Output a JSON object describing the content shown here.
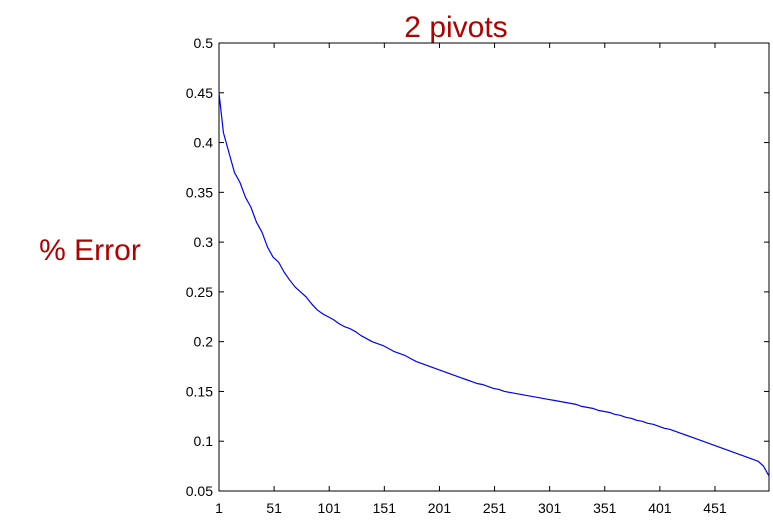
{
  "chart_data": {
    "type": "line",
    "title": "2 pivots",
    "xlabel": "",
    "ylabel": "% Error",
    "xlim": [
      1,
      500
    ],
    "ylim": [
      0.05,
      0.5
    ],
    "x_ticks": [
      1,
      51,
      101,
      151,
      201,
      251,
      301,
      351,
      401,
      451
    ],
    "x_tick_labels": [
      "1",
      "51",
      "101",
      "151",
      "201",
      "251",
      "301",
      "351",
      "401",
      "451"
    ],
    "y_ticks": [
      0.05,
      0.1,
      0.15,
      0.2,
      0.25,
      0.3,
      0.35,
      0.4,
      0.45,
      0.5
    ],
    "y_tick_labels": [
      "0.05",
      "0.1",
      "0.15",
      "0.2",
      "0.25",
      "0.3",
      "0.35",
      "0.4",
      "0.45",
      "0.5"
    ],
    "grid": false,
    "legend": "none",
    "series": [
      {
        "color": "#0000ff",
        "x": [
          1,
          3,
          5,
          10,
          15,
          20,
          25,
          30,
          35,
          40,
          45,
          50,
          55,
          60,
          65,
          70,
          75,
          80,
          85,
          90,
          95,
          100,
          105,
          110,
          115,
          120,
          125,
          130,
          135,
          140,
          145,
          150,
          155,
          160,
          165,
          170,
          175,
          180,
          185,
          190,
          195,
          200,
          205,
          210,
          215,
          220,
          225,
          230,
          235,
          240,
          245,
          250,
          255,
          260,
          265,
          270,
          275,
          280,
          285,
          290,
          295,
          300,
          305,
          310,
          315,
          320,
          325,
          330,
          335,
          340,
          345,
          350,
          355,
          360,
          365,
          370,
          375,
          380,
          385,
          390,
          395,
          400,
          405,
          410,
          415,
          420,
          425,
          430,
          435,
          440,
          445,
          450,
          455,
          460,
          465,
          470,
          475,
          480,
          485,
          490,
          495,
          500
        ],
        "y": [
          0.45,
          0.43,
          0.41,
          0.39,
          0.37,
          0.36,
          0.345,
          0.335,
          0.32,
          0.31,
          0.295,
          0.285,
          0.28,
          0.27,
          0.262,
          0.255,
          0.25,
          0.245,
          0.238,
          0.232,
          0.228,
          0.225,
          0.222,
          0.218,
          0.215,
          0.213,
          0.21,
          0.206,
          0.203,
          0.2,
          0.198,
          0.196,
          0.193,
          0.19,
          0.188,
          0.186,
          0.183,
          0.18,
          0.178,
          0.176,
          0.174,
          0.172,
          0.17,
          0.168,
          0.166,
          0.164,
          0.162,
          0.16,
          0.158,
          0.157,
          0.155,
          0.153,
          0.152,
          0.15,
          0.149,
          0.148,
          0.147,
          0.146,
          0.145,
          0.144,
          0.143,
          0.142,
          0.141,
          0.14,
          0.139,
          0.138,
          0.137,
          0.135,
          0.134,
          0.133,
          0.131,
          0.13,
          0.129,
          0.127,
          0.126,
          0.124,
          0.123,
          0.121,
          0.12,
          0.118,
          0.117,
          0.115,
          0.113,
          0.112,
          0.11,
          0.108,
          0.106,
          0.104,
          0.102,
          0.1,
          0.098,
          0.096,
          0.094,
          0.092,
          0.09,
          0.088,
          0.086,
          0.084,
          0.082,
          0.08,
          0.075,
          0.065
        ]
      }
    ]
  }
}
